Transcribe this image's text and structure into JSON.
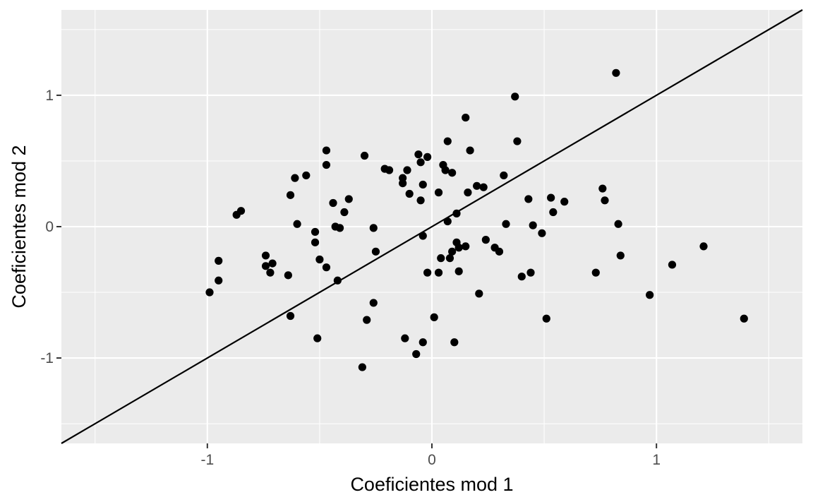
{
  "chart_data": {
    "type": "scatter",
    "xlabel": "Coeficientes mod 1",
    "ylabel": "Coeficientes mod 2",
    "xlim": [
      -1.65,
      1.65
    ],
    "ylim": [
      -1.65,
      1.65
    ],
    "xticks": [
      -1,
      0,
      1
    ],
    "yticks": [
      -1,
      0,
      1
    ],
    "xtick_labels": [
      "-1",
      "0",
      "1"
    ],
    "ytick_labels": [
      "-1",
      "0",
      "1"
    ],
    "grid": true,
    "reference_line": {
      "slope": 1,
      "intercept": 0
    },
    "colors": {
      "panel": "#ebebeb",
      "grid": "#ffffff",
      "points": "#000000",
      "line": "#000000"
    },
    "points": [
      [
        -0.99,
        -0.5
      ],
      [
        -0.95,
        -0.41
      ],
      [
        -0.95,
        -0.26
      ],
      [
        -0.87,
        0.09
      ],
      [
        -0.85,
        0.12
      ],
      [
        -0.74,
        -0.22
      ],
      [
        -0.74,
        -0.3
      ],
      [
        -0.72,
        -0.35
      ],
      [
        -0.71,
        -0.28
      ],
      [
        -0.64,
        -0.37
      ],
      [
        -0.63,
        -0.68
      ],
      [
        -0.63,
        0.24
      ],
      [
        -0.61,
        0.37
      ],
      [
        -0.6,
        0.02
      ],
      [
        -0.56,
        0.39
      ],
      [
        -0.52,
        -0.04
      ],
      [
        -0.52,
        -0.12
      ],
      [
        -0.51,
        -0.85
      ],
      [
        -0.5,
        -0.25
      ],
      [
        -0.47,
        -0.31
      ],
      [
        -0.47,
        0.47
      ],
      [
        -0.47,
        0.58
      ],
      [
        -0.44,
        0.18
      ],
      [
        -0.43,
        0.0
      ],
      [
        -0.42,
        -0.41
      ],
      [
        -0.41,
        -0.01
      ],
      [
        -0.39,
        0.11
      ],
      [
        -0.37,
        0.21
      ],
      [
        -0.3,
        0.54
      ],
      [
        -0.29,
        -0.71
      ],
      [
        -0.26,
        -0.01
      ],
      [
        -0.26,
        -0.58
      ],
      [
        -0.25,
        -0.19
      ],
      [
        -0.31,
        -1.07
      ],
      [
        -0.21,
        0.44
      ],
      [
        -0.19,
        0.43
      ],
      [
        -0.13,
        0.37
      ],
      [
        -0.13,
        0.33
      ],
      [
        -0.11,
        0.43
      ],
      [
        -0.1,
        0.25
      ],
      [
        -0.12,
        -0.85
      ],
      [
        -0.07,
        -0.97
      ],
      [
        -0.06,
        0.55
      ],
      [
        -0.05,
        0.49
      ],
      [
        -0.05,
        0.2
      ],
      [
        -0.04,
        -0.07
      ],
      [
        -0.04,
        0.32
      ],
      [
        -0.04,
        -0.88
      ],
      [
        -0.02,
        0.53
      ],
      [
        -0.02,
        -0.35
      ],
      [
        0.01,
        -0.69
      ],
      [
        0.03,
        0.26
      ],
      [
        0.03,
        -0.35
      ],
      [
        0.05,
        0.47
      ],
      [
        0.04,
        -0.24
      ],
      [
        0.06,
        0.43
      ],
      [
        0.07,
        0.65
      ],
      [
        0.07,
        0.04
      ],
      [
        0.08,
        -0.24
      ],
      [
        0.09,
        0.41
      ],
      [
        0.09,
        -0.19
      ],
      [
        0.1,
        -0.88
      ],
      [
        0.11,
        -0.12
      ],
      [
        0.11,
        0.1
      ],
      [
        0.12,
        -0.16
      ],
      [
        0.12,
        -0.34
      ],
      [
        0.15,
        -0.15
      ],
      [
        0.15,
        0.83
      ],
      [
        0.16,
        0.26
      ],
      [
        0.17,
        0.58
      ],
      [
        0.2,
        0.31
      ],
      [
        0.21,
        -0.51
      ],
      [
        0.23,
        0.3
      ],
      [
        0.24,
        -0.1
      ],
      [
        0.28,
        -0.16
      ],
      [
        0.3,
        -0.19
      ],
      [
        0.32,
        0.39
      ],
      [
        0.33,
        0.02
      ],
      [
        0.37,
        0.99
      ],
      [
        0.38,
        0.65
      ],
      [
        0.4,
        -0.38
      ],
      [
        0.43,
        0.21
      ],
      [
        0.44,
        -0.35
      ],
      [
        0.45,
        0.01
      ],
      [
        0.49,
        -0.05
      ],
      [
        0.51,
        -0.7
      ],
      [
        0.53,
        0.22
      ],
      [
        0.54,
        0.11
      ],
      [
        0.59,
        0.19
      ],
      [
        0.73,
        -0.35
      ],
      [
        0.76,
        0.29
      ],
      [
        0.77,
        0.2
      ],
      [
        0.82,
        1.17
      ],
      [
        0.83,
        0.02
      ],
      [
        0.84,
        -0.22
      ],
      [
        0.97,
        -0.52
      ],
      [
        1.07,
        -0.29
      ],
      [
        1.21,
        -0.15
      ],
      [
        1.39,
        -0.7
      ]
    ]
  }
}
